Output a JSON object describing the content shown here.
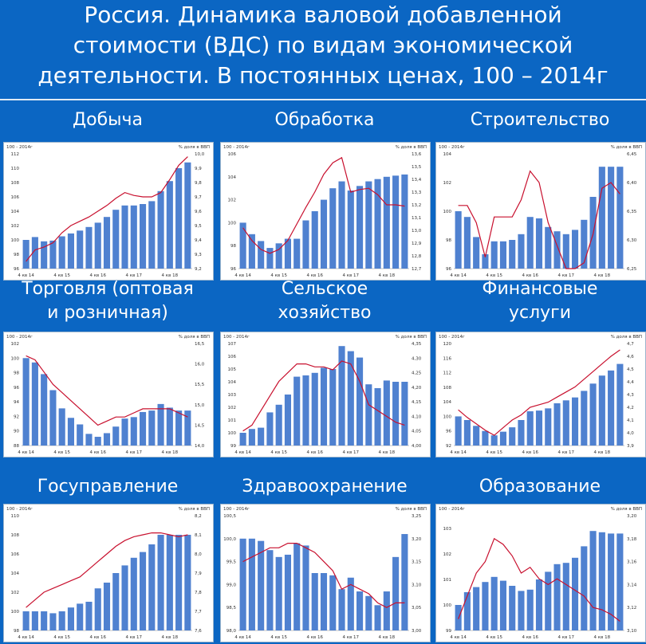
{
  "page": {
    "title_lines": [
      "Россия. Динамика валовой добавленной",
      "стоимости (ВДС) по видам экономической",
      "деятельности. В постоянных ценах, 100 – 2014г"
    ]
  },
  "colors": {
    "background": "#0b66c3",
    "bar": "#4f81d0",
    "line": "#c8102e"
  },
  "chart_data": [
    {
      "type": "bar",
      "title": "Добыча",
      "left_label": "100 - 2014г",
      "right_label": "% доля в ВВП",
      "x_ticks": [
        "4 кв 14",
        "4 кв 15",
        "4 кв 16",
        "4 кв 17",
        "4 кв 18"
      ],
      "ylim": [
        96,
        112
      ],
      "yticks": [
        96,
        98,
        100,
        102,
        104,
        106,
        108,
        110,
        112
      ],
      "y2lim": [
        9.2,
        10.0
      ],
      "y2ticks": [
        "9,2",
        "9,3",
        "9,4",
        "9,5",
        "9,6",
        "9,7",
        "9,8",
        "9,9",
        "10,0"
      ],
      "series": [
        {
          "values": [
            100.0,
            100.4,
            99.8,
            99.9,
            100.5,
            100.9,
            101.3,
            101.8,
            102.4,
            103.2,
            104.2,
            104.8,
            104.8,
            105.0,
            105.4,
            106.8,
            108.2,
            110.0,
            110.8
          ]
        },
        {
          "axis": "right",
          "values": [
            9.25,
            9.33,
            9.35,
            9.38,
            9.45,
            9.5,
            9.53,
            9.56,
            9.6,
            9.64,
            9.69,
            9.73,
            9.71,
            9.7,
            9.7,
            9.73,
            9.82,
            9.92,
            9.98
          ]
        }
      ]
    },
    {
      "type": "bar",
      "title": "Обработка",
      "left_label": "100 - 2014г",
      "right_label": "% доля в ВВП",
      "x_ticks": [
        "4 кв 14",
        "4 кв 15",
        "4 кв 16",
        "4 кв 17",
        "4 кв 18"
      ],
      "ylim": [
        96,
        106
      ],
      "yticks": [
        96,
        98,
        100,
        102,
        104,
        106
      ],
      "y2lim": [
        12.7,
        13.6
      ],
      "y2ticks": [
        "12,7",
        "12,8",
        "12,9",
        "13,0",
        "13,1",
        "13,2",
        "13,3",
        "13,4",
        "13,5",
        "13,6"
      ],
      "series": [
        {
          "values": [
            100.0,
            99.0,
            98.4,
            97.8,
            98.2,
            98.6,
            98.6,
            100.2,
            101.0,
            102.0,
            103.0,
            103.6,
            102.8,
            103.2,
            103.6,
            103.8,
            104.0,
            104.1,
            104.2
          ]
        },
        {
          "axis": "right",
          "values": [
            13.02,
            12.92,
            12.85,
            12.82,
            12.85,
            12.92,
            13.05,
            13.18,
            13.3,
            13.44,
            13.53,
            13.57,
            13.3,
            13.32,
            13.33,
            13.28,
            13.2,
            13.2,
            13.19
          ]
        }
      ]
    },
    {
      "type": "bar",
      "title": "Строительство",
      "left_label": "100 - 2014г",
      "right_label": "% доля в ВВП",
      "x_ticks": [
        "4 кв 14",
        "4 кв 15",
        "4 кв 16",
        "4 кв 17",
        "4 кв 18"
      ],
      "ylim": [
        96,
        104
      ],
      "yticks": [
        96,
        98,
        100,
        102,
        104
      ],
      "y2lim": [
        6.25,
        6.45
      ],
      "y2ticks": [
        "6,25",
        "6,30",
        "6,35",
        "6,40",
        "6,45"
      ],
      "series": [
        {
          "values": [
            100.0,
            99.6,
            98.2,
            97.0,
            97.9,
            97.9,
            98.0,
            98.4,
            99.6,
            99.5,
            98.9,
            98.6,
            98.4,
            98.7,
            99.4,
            101.0,
            103.1,
            103.1,
            103.1
          ]
        },
        {
          "axis": "right",
          "values": [
            6.36,
            6.36,
            6.33,
            6.27,
            6.34,
            6.34,
            6.34,
            6.37,
            6.42,
            6.4,
            6.33,
            6.29,
            6.25,
            6.25,
            6.26,
            6.31,
            6.39,
            6.4,
            6.38
          ]
        }
      ]
    },
    {
      "type": "bar",
      "title": "Торговля (оптовая\nи розничная)",
      "left_label": "100 - 2014г",
      "right_label": "% доля в ВВП",
      "x_ticks": [
        "4 кв 14",
        "4 кв 15",
        "4 кв 16",
        "4 кв 17",
        "4 кв 18"
      ],
      "ylim": [
        88,
        102
      ],
      "yticks": [
        88,
        90,
        92,
        94,
        96,
        98,
        100,
        102
      ],
      "y2lim": [
        14.0,
        16.5
      ],
      "y2ticks": [
        "14,0",
        "14,5",
        "15,0",
        "15,5",
        "16,0",
        "16,5"
      ],
      "series": [
        {
          "values": [
            100.0,
            99.4,
            97.8,
            95.6,
            93.1,
            91.8,
            90.9,
            89.6,
            89.2,
            89.7,
            90.6,
            91.7,
            91.9,
            92.6,
            92.8,
            93.7,
            93.2,
            92.8,
            92.8
          ]
        },
        {
          "axis": "right",
          "values": [
            16.2,
            16.1,
            15.8,
            15.5,
            15.3,
            15.1,
            14.9,
            14.7,
            14.5,
            14.6,
            14.7,
            14.7,
            14.8,
            14.9,
            14.9,
            14.9,
            14.9,
            14.8,
            14.7
          ]
        }
      ]
    },
    {
      "type": "bar",
      "title": "Сельское\nхозяйство",
      "left_label": "100 - 2014г",
      "right_label": "% доля в ВВП",
      "x_ticks": [
        "4 кв 14",
        "4 кв 15",
        "4 кв 16",
        "4 кв 17",
        "4 кв 18"
      ],
      "ylim": [
        99,
        107
      ],
      "yticks": [
        99,
        100,
        101,
        102,
        103,
        104,
        105,
        106,
        107
      ],
      "y2lim": [
        4.0,
        4.35
      ],
      "y2ticks": [
        "4,00",
        "4,05",
        "4,10",
        "4,15",
        "4,20",
        "4,25",
        "4,30",
        "4,35"
      ],
      "series": [
        {
          "values": [
            100.0,
            100.3,
            100.4,
            101.6,
            102.2,
            103.0,
            104.4,
            104.5,
            104.7,
            105.1,
            105.0,
            106.8,
            106.4,
            105.9,
            103.8,
            103.5,
            104.1,
            104.0,
            104.0
          ]
        },
        {
          "axis": "right",
          "values": [
            4.05,
            4.07,
            4.12,
            4.17,
            4.22,
            4.25,
            4.28,
            4.28,
            4.27,
            4.27,
            4.26,
            4.29,
            4.28,
            4.22,
            4.14,
            4.12,
            4.1,
            4.08,
            4.07
          ]
        }
      ]
    },
    {
      "type": "bar",
      "title": "Финансовые\nуслуги",
      "left_label": "100 - 2014г",
      "right_label": "% доля в ВВП",
      "x_ticks": [
        "4 кв 14",
        "4 кв 15",
        "4 кв 16",
        "4 кв 17",
        "4 кв 18"
      ],
      "ylim": [
        92,
        120
      ],
      "yticks": [
        92,
        96,
        100,
        104,
        108,
        112,
        116,
        120
      ],
      "y2lim": [
        3.9,
        4.7
      ],
      "y2ticks": [
        "3,9",
        "4,0",
        "4,1",
        "4,2",
        "4,3",
        "4,4",
        "4,5",
        "4,6",
        "4,7"
      ],
      "series": [
        {
          "values": [
            100.0,
            99.0,
            97.4,
            96.0,
            94.8,
            95.8,
            97.0,
            99.0,
            101.4,
            101.6,
            102.2,
            103.6,
            104.4,
            105.2,
            107.0,
            109.0,
            111.2,
            112.6,
            114.4
          ]
        },
        {
          "axis": "right",
          "values": [
            4.18,
            4.12,
            4.07,
            4.02,
            3.98,
            4.04,
            4.1,
            4.14,
            4.2,
            4.22,
            4.24,
            4.28,
            4.32,
            4.36,
            4.42,
            4.48,
            4.54,
            4.6,
            4.65
          ]
        }
      ]
    },
    {
      "type": "bar",
      "title": "Госуправление",
      "left_label": "100 - 2014г",
      "right_label": "% доля в ВВП",
      "x_ticks": [
        "4 кв 14",
        "4 кв 15",
        "4 кв 16",
        "4 кв 17",
        "4 кв 18"
      ],
      "ylim": [
        98,
        110
      ],
      "yticks": [
        98,
        100,
        102,
        104,
        106,
        108,
        110
      ],
      "y2lim": [
        7.6,
        8.2
      ],
      "y2ticks": [
        "7,6",
        "7,7",
        "7,8",
        "7,9",
        "8,0",
        "8,1",
        "8,2"
      ],
      "series": [
        {
          "values": [
            100.0,
            100.0,
            100.0,
            99.8,
            100.0,
            100.4,
            100.8,
            101.0,
            102.4,
            103.0,
            104.0,
            104.8,
            105.6,
            106.2,
            107.0,
            108.0,
            108.0,
            108.0,
            108.0
          ]
        },
        {
          "axis": "right",
          "values": [
            7.72,
            7.76,
            7.8,
            7.82,
            7.84,
            7.86,
            7.88,
            7.92,
            7.96,
            8.0,
            8.04,
            8.07,
            8.09,
            8.1,
            8.11,
            8.11,
            8.1,
            8.09,
            8.1
          ]
        }
      ]
    },
    {
      "type": "bar",
      "title": "Здравоохранение",
      "left_label": "100 - 2014г",
      "right_label": "% доля в ВВП",
      "x_ticks": [
        "4 кв 14",
        "4 кв 15",
        "4 кв 16",
        "4 кв 17",
        "4 кв 18"
      ],
      "ylim": [
        98.0,
        100.5
      ],
      "yticks": [
        98.0,
        98.5,
        99.0,
        99.5,
        100.0,
        100.5
      ],
      "y2lim": [
        3.0,
        3.25
      ],
      "y2ticks": [
        "3,00",
        "3,05",
        "3,10",
        "3,15",
        "3,20",
        "3,25"
      ],
      "series": [
        {
          "values": [
            100.0,
            100.0,
            99.95,
            99.75,
            99.6,
            99.65,
            99.9,
            99.85,
            99.25,
            99.25,
            99.2,
            98.9,
            99.15,
            98.85,
            98.75,
            98.55,
            98.85,
            99.6,
            100.1
          ]
        },
        {
          "axis": "right",
          "values": [
            3.15,
            3.16,
            3.17,
            3.18,
            3.18,
            3.19,
            3.19,
            3.18,
            3.17,
            3.15,
            3.13,
            3.09,
            3.1,
            3.09,
            3.08,
            3.06,
            3.05,
            3.06,
            3.06
          ]
        }
      ]
    },
    {
      "type": "bar",
      "title": "Образование",
      "left_label": "100 - 2014г",
      "right_label": "% доля в ВВП",
      "x_ticks": [
        "4 кв 14",
        "4 кв 15",
        "4 кв 16",
        "4 кв 17",
        "4 кв 18"
      ],
      "ylim": [
        99,
        103.5
      ],
      "yticks": [
        99,
        100,
        101,
        102,
        103
      ],
      "y2lim": [
        3.1,
        3.2
      ],
      "y2ticks": [
        "3,10",
        "3,12",
        "3,14",
        "3,16",
        "3,18",
        "3,20"
      ],
      "series": [
        {
          "values": [
            100.0,
            100.5,
            100.7,
            100.9,
            101.1,
            100.95,
            100.75,
            100.55,
            100.6,
            101.0,
            101.3,
            101.6,
            101.65,
            101.85,
            102.3,
            102.9,
            102.85,
            102.8,
            102.8
          ]
        },
        {
          "axis": "right",
          "values": [
            3.11,
            3.13,
            3.15,
            3.16,
            3.18,
            3.175,
            3.165,
            3.15,
            3.155,
            3.145,
            3.14,
            3.145,
            3.14,
            3.135,
            3.13,
            3.12,
            3.118,
            3.114,
            3.108
          ]
        }
      ]
    }
  ]
}
